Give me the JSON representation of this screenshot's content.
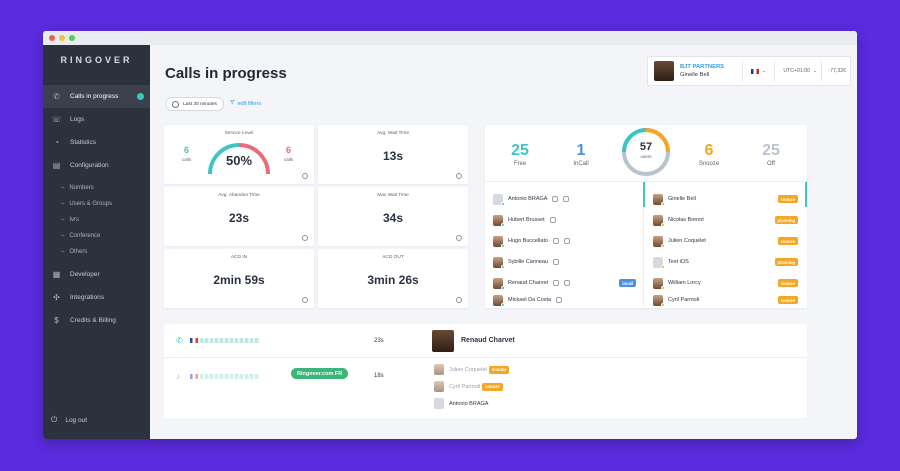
{
  "window": {
    "dots": [
      "#f25c54",
      "#f6c244",
      "#4fce5d"
    ]
  },
  "sidebar": {
    "logo": "RINGOVER",
    "items": [
      {
        "label": "Calls in progress",
        "icon": "phone-icon",
        "active": true
      },
      {
        "label": "Logs",
        "icon": "phone-log-icon"
      },
      {
        "label": "Statistics",
        "icon": "pie-chart-icon"
      },
      {
        "label": "Configuration",
        "icon": "settings-grid-icon"
      }
    ],
    "subitems": [
      "Numbers",
      "Users & Groups",
      "Ivrs",
      "Conference",
      "Others"
    ],
    "items2": [
      {
        "label": "Developer",
        "icon": "code-icon"
      },
      {
        "label": "Integrations",
        "icon": "integrations-icon"
      },
      {
        "label": "Credits & Billing",
        "icon": "money-bag-icon"
      }
    ],
    "logout": "Log out"
  },
  "header": {
    "title": "Calls in progress",
    "filter": "Last 30 minutes",
    "edit_filters": "edit filters",
    "company": "BJT PARTNERS",
    "user": "Ginelle Bell",
    "timezone": "UTC+01:00",
    "credit": "-77,32€"
  },
  "kpis": {
    "service_level": {
      "label": "Service Level",
      "left_value": "6",
      "left_caption": "calls",
      "percent": "50%",
      "right_value": "6",
      "right_caption": "calls",
      "fraction": 0.5
    },
    "avg_wait": {
      "label": "Avg. Wait Time",
      "value": "13s"
    },
    "avg_abandon": {
      "label": "Avg. Abandon Time",
      "value": "23s"
    },
    "max_wait": {
      "label": "Max Wait Time",
      "value": "34s"
    },
    "acd_in": {
      "label": "ACD IN",
      "value": "2min 59s"
    },
    "acd_out": {
      "label": "ACD OUT",
      "value": "3min 26s"
    }
  },
  "agents_summary": {
    "free": {
      "value": "25",
      "label": "Free"
    },
    "incall": {
      "value": "1",
      "label": "InCall"
    },
    "total": {
      "value": "57",
      "label": "users"
    },
    "snooze": {
      "value": "6",
      "label": "Snooze"
    },
    "off": {
      "value": "25",
      "label": "Off"
    }
  },
  "agents_left": [
    {
      "name": "Antonio BRAGA",
      "tag": "",
      "status": "#3ec7c2"
    },
    {
      "name": "Hubert Brusset",
      "tag": "",
      "status": "#3ec7c2"
    },
    {
      "name": "Hugo Buccellato",
      "tag": "",
      "status": "#3ec7c2"
    },
    {
      "name": "Sybille Canneau",
      "tag": "",
      "status": "#3ec7c2"
    },
    {
      "name": "Renaud Charvet",
      "tag": "incall",
      "status": "#4a90e2"
    },
    {
      "name": "Mickael Da Costa",
      "tag": "",
      "status": "#3ec7c2"
    }
  ],
  "agents_right": [
    {
      "name": "Ginelle Bell",
      "tag": "snooze"
    },
    {
      "name": "Nicolas Brenot",
      "tag": "planning"
    },
    {
      "name": "Julien Coquelet",
      "tag": "snooze"
    },
    {
      "name": "Test iOS",
      "tag": "planning"
    },
    {
      "name": "William Lorcy",
      "tag": "snooze"
    },
    {
      "name": "Cyril Parmoli",
      "tag": "snooze"
    }
  ],
  "calls": [
    {
      "duration": "23s",
      "agent": "Renaud Charvet"
    },
    {
      "duration": "18s",
      "group": "Ringover.com FR",
      "ringing": [
        {
          "name": "Julien Coquelet",
          "tag": "snooze"
        },
        {
          "name": "Cyril Parmoli",
          "tag": "snooze"
        },
        {
          "name": "Antonio BRAGA",
          "tag": ""
        }
      ]
    }
  ],
  "colors": {
    "free": "#3ec7c2",
    "incall": "#4a90e2",
    "snooze": "#f5a623",
    "off": "#b9c2cf",
    "danger": "#ec6a7a"
  }
}
